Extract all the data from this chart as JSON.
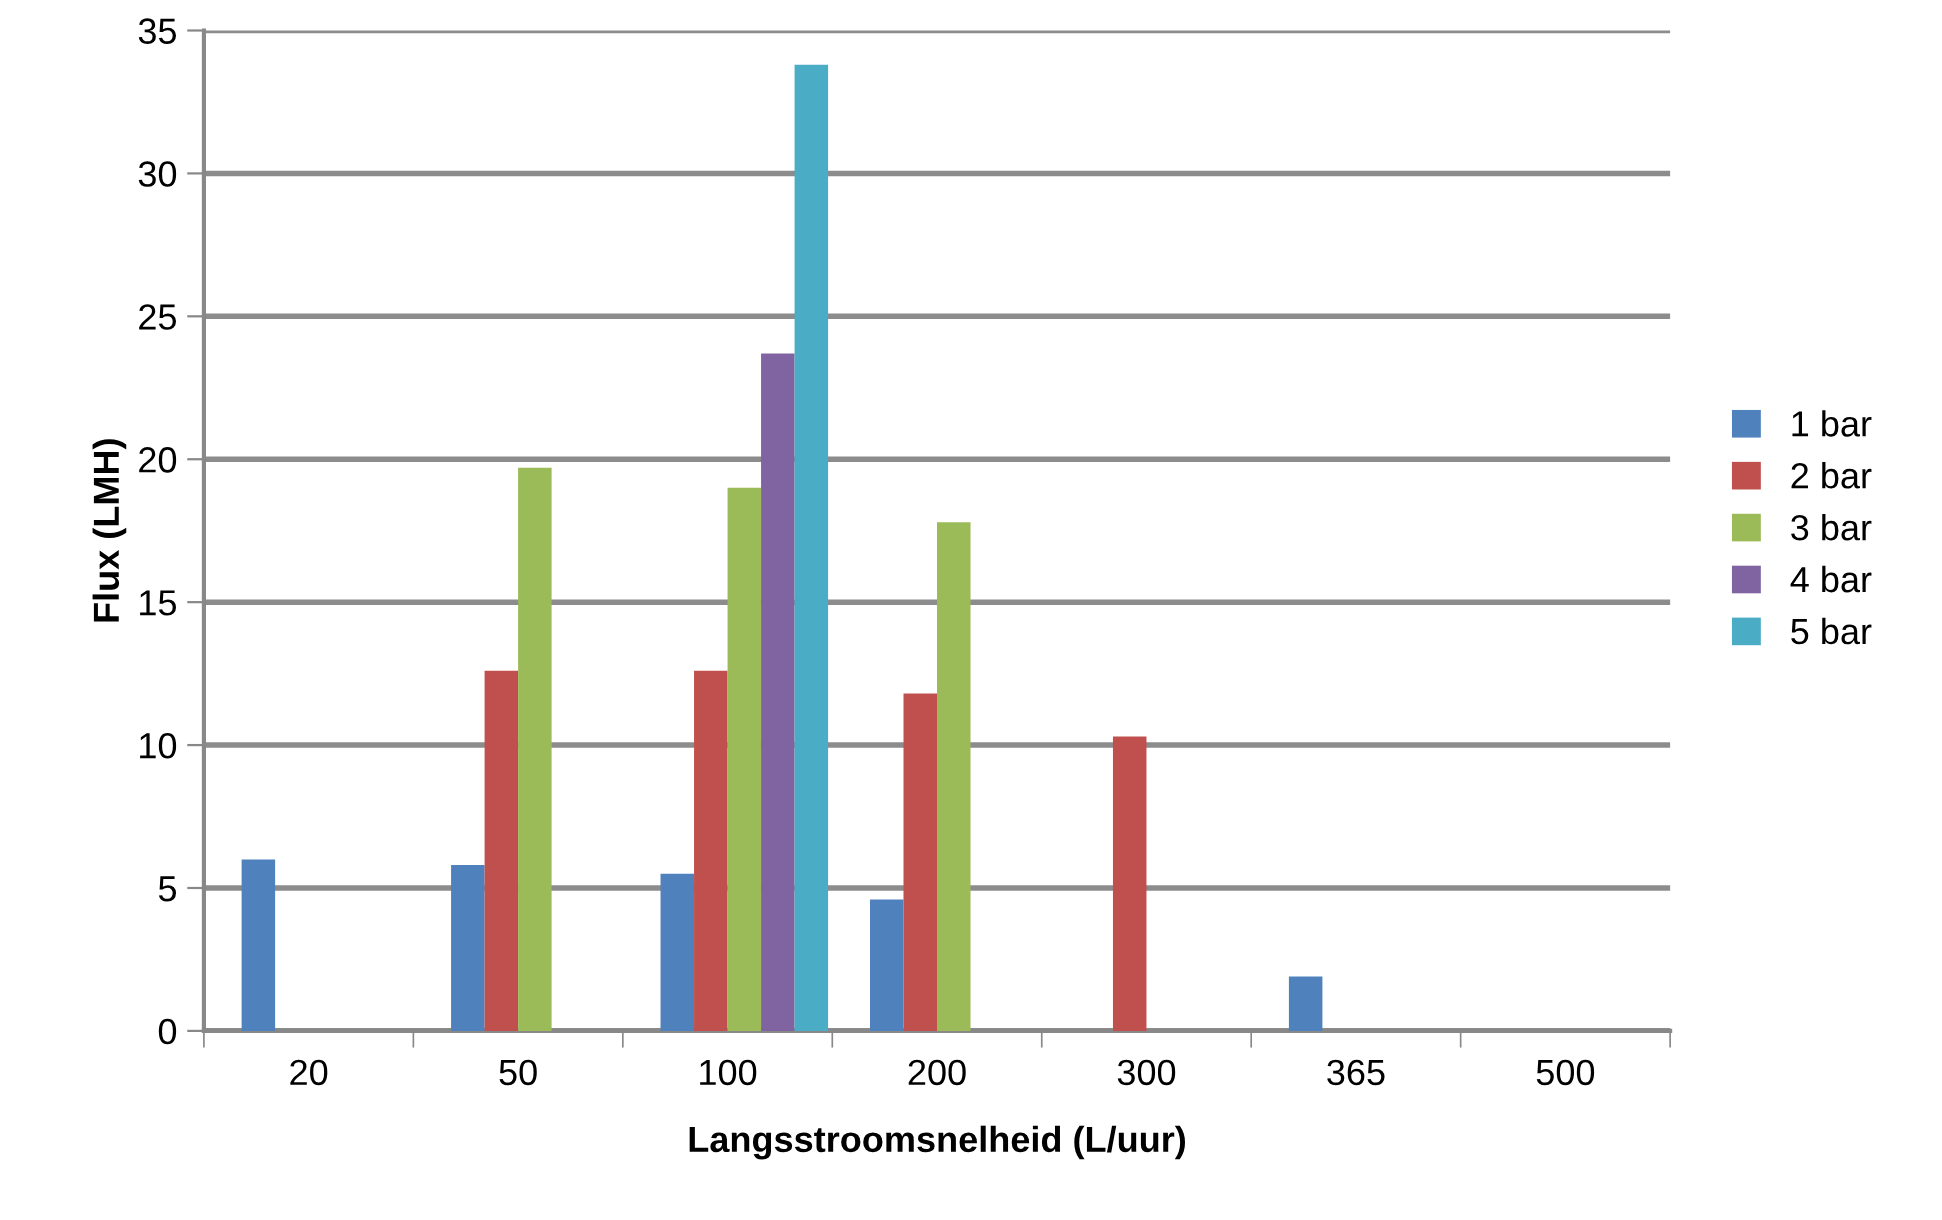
{
  "chart_data": {
    "type": "bar",
    "xlabel": "Langsstroomsnelheid (L/uur)",
    "ylabel": "Flux (LMH)",
    "categories": [
      "20",
      "50",
      "100",
      "200",
      "300",
      "365",
      "500"
    ],
    "series": [
      {
        "name": "1 bar",
        "color": "#4f81bd",
        "values": [
          6.0,
          5.8,
          5.5,
          4.6,
          null,
          1.9,
          null
        ]
      },
      {
        "name": "2 bar",
        "color": "#c0504d",
        "values": [
          null,
          12.6,
          12.6,
          11.8,
          10.3,
          null,
          null
        ]
      },
      {
        "name": "3 bar",
        "color": "#9bbb59",
        "values": [
          null,
          19.7,
          19.0,
          17.8,
          null,
          null,
          null
        ]
      },
      {
        "name": "4 bar",
        "color": "#8064a2",
        "values": [
          null,
          null,
          23.7,
          null,
          null,
          null,
          null
        ]
      },
      {
        "name": "5 bar",
        "color": "#4bacc6",
        "values": [
          null,
          null,
          33.8,
          null,
          null,
          null,
          null
        ]
      }
    ],
    "ylim": [
      0,
      35
    ],
    "yticks": [
      0,
      5,
      10,
      15,
      20,
      25,
      30,
      35
    ],
    "grid": "y",
    "legend": "right"
  }
}
